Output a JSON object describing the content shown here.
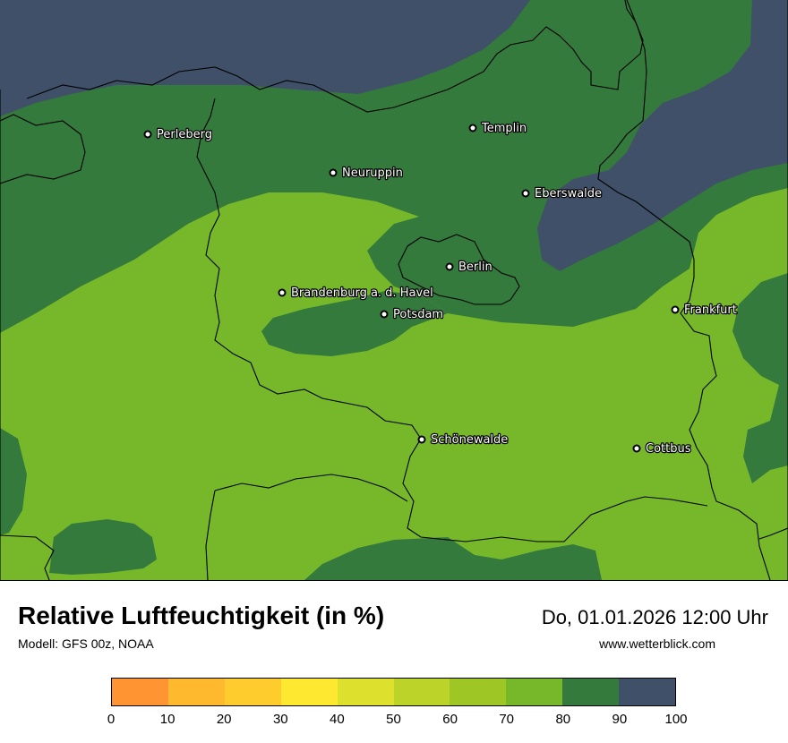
{
  "title": "Relative Luftfeuchtigkeit (in %)",
  "model": "Modell: GFS 00z, NOAA",
  "datetime": "Do, 01.01.2026 12:00 Uhr",
  "site": "www.wetterblick.com",
  "colors": {
    "band_70_80": "#76b82a",
    "band_80_90": "#357a3d",
    "band_90_100": "#3f5068",
    "borders": "#000000"
  },
  "cities": [
    {
      "name": "Perleberg"
    },
    {
      "name": "Templin"
    },
    {
      "name": "Neuruppin"
    },
    {
      "name": "Eberswalde"
    },
    {
      "name": "Berlin"
    },
    {
      "name": "Brandenburg a. d. Havel"
    },
    {
      "name": "Potsdam"
    },
    {
      "name": "Frankfurt"
    },
    {
      "name": "Schönewalde"
    },
    {
      "name": "Cottbus"
    }
  ],
  "legend": {
    "ticks": [
      "0",
      "10",
      "20",
      "30",
      "40",
      "50",
      "60",
      "70",
      "80",
      "90",
      "100"
    ],
    "colors": [
      "#ff9433",
      "#ffb92e",
      "#ffcc2e",
      "#ffe930",
      "#dde02c",
      "#bcd32a",
      "#9ec726",
      "#76b82a",
      "#357a3d",
      "#3f5068"
    ]
  }
}
